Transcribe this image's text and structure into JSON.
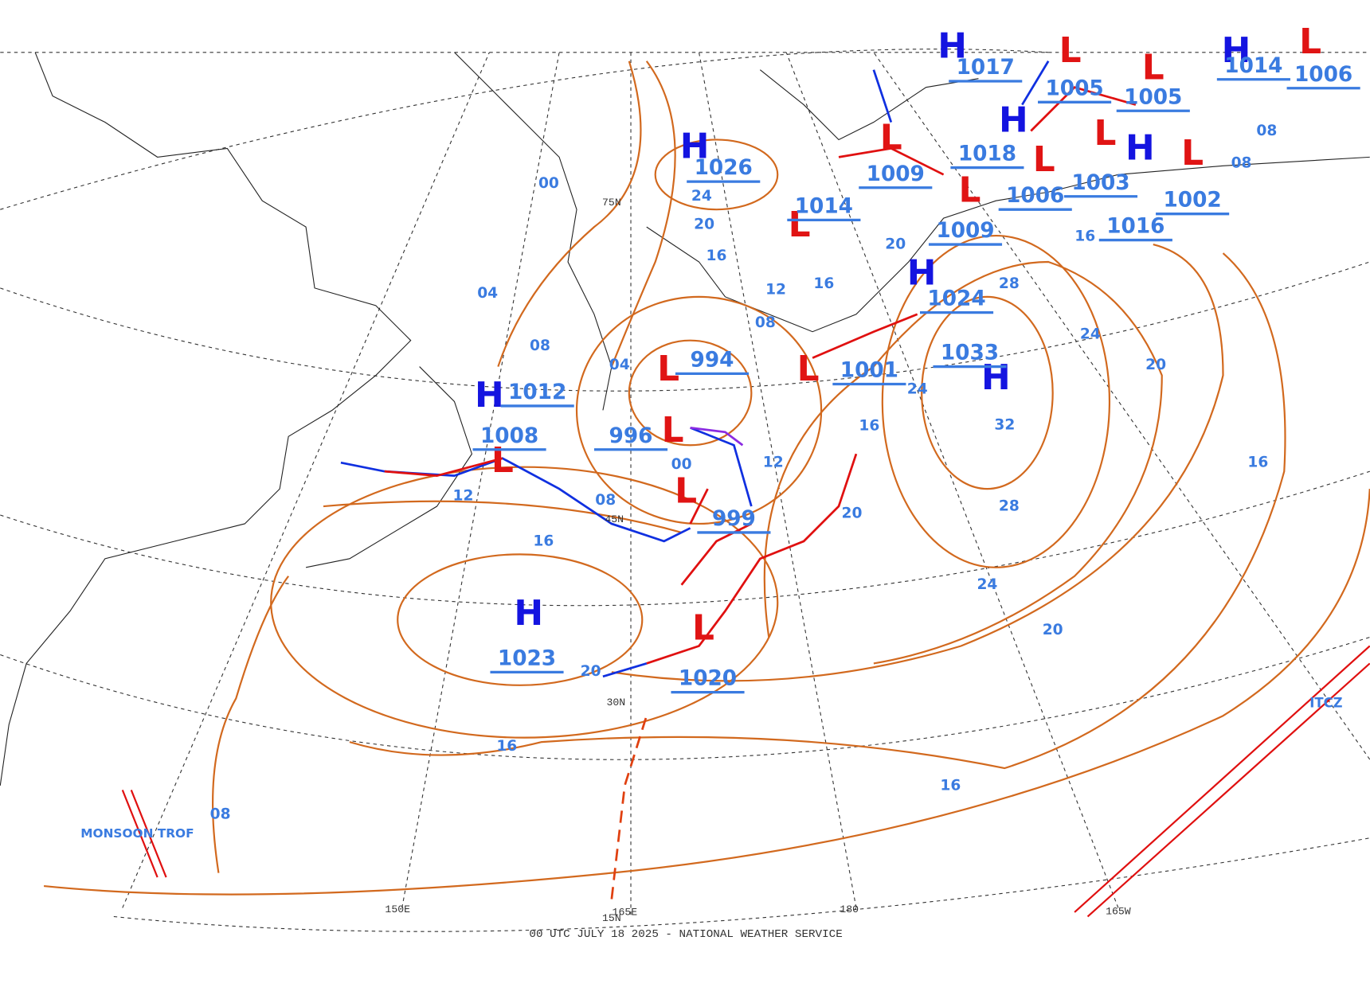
{
  "footer": "00 UTC JULY 18 2025 - NATIONAL WEATHER SERVICE",
  "grid_labels": [
    "150E",
    "165E",
    "180",
    "165W",
    "30N",
    "45N",
    "75N",
    "15N"
  ],
  "annotations": [
    "MONSOON TROF",
    "ITCZ"
  ],
  "pressure_centers": [
    {
      "kind": "H",
      "value": "1023"
    },
    {
      "kind": "L",
      "value": "1020"
    },
    {
      "kind": "L",
      "value": "999"
    },
    {
      "kind": "L",
      "value": "996"
    },
    {
      "kind": "L",
      "value": "994"
    },
    {
      "kind": "H",
      "value": "1012"
    },
    {
      "kind": "L",
      "value": "1008"
    },
    {
      "kind": "L",
      "value": "1001"
    },
    {
      "kind": "H",
      "value": "1033"
    },
    {
      "kind": "H",
      "value": "1024"
    },
    {
      "kind": "L",
      "value": "1009"
    },
    {
      "kind": "L",
      "value": "1014"
    },
    {
      "kind": "H",
      "value": "1026"
    },
    {
      "kind": "L",
      "value": "1009"
    },
    {
      "kind": "H",
      "value": "1018"
    },
    {
      "kind": "L",
      "value": "1006"
    },
    {
      "kind": "L",
      "value": "1003"
    },
    {
      "kind": "L",
      "value": "1002"
    },
    {
      "kind": "H",
      "value": "1016"
    },
    {
      "kind": "L",
      "value": "1005"
    },
    {
      "kind": "L",
      "value": "1005"
    },
    {
      "kind": "H",
      "value": "1017"
    },
    {
      "kind": "H",
      "value": "1014"
    },
    {
      "kind": "L",
      "value": "1006"
    }
  ],
  "isobar_labels": [
    "16",
    "12",
    "08",
    "04",
    "08",
    "04",
    "00",
    "00",
    "12",
    "16",
    "20",
    "24",
    "28",
    "32",
    "28",
    "24",
    "20",
    "16",
    "20",
    "24",
    "16",
    "16",
    "20",
    "08",
    "08",
    "12",
    "16",
    "20",
    "24",
    "16",
    "20",
    "16",
    "08",
    "08"
  ]
}
